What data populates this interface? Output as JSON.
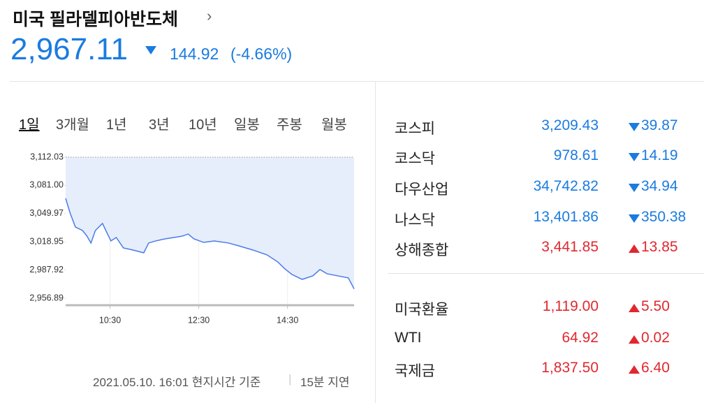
{
  "header": {
    "title": "미국 필라델피아반도체",
    "price": "2,967.11",
    "change": "144.92",
    "change_percent": "(-4.66%)"
  },
  "tabs": [
    "1일",
    "3개월",
    "1년",
    "3년",
    "10년",
    "일봉",
    "주봉",
    "월봉"
  ],
  "chart_data": {
    "type": "line",
    "color": "#4a7be8",
    "area_color": "#e6eefc",
    "x": [
      9.5,
      9.6,
      9.72,
      9.88,
      9.98,
      10.07,
      10.17,
      10.33,
      10.42,
      10.52,
      10.64,
      10.8,
      11.02,
      11.26,
      11.37,
      11.53,
      11.74,
      11.94,
      12.13,
      12.26,
      12.39,
      12.61,
      12.85,
      13.17,
      13.4,
      13.72,
      14.04,
      14.28,
      14.44,
      14.6,
      14.83,
      15.07,
      15.23,
      15.39,
      15.63,
      15.87,
      16.0
    ],
    "values": [
      3066.7,
      3050.6,
      3035.2,
      3031.4,
      3025.2,
      3017.6,
      3031.4,
      3039.1,
      3029.9,
      3019.9,
      3023.7,
      3012.2,
      3009.9,
      3006.8,
      3017.6,
      3019.9,
      3022.2,
      3023.7,
      3025.2,
      3027.5,
      3022.2,
      3018.3,
      3019.9,
      3017.6,
      3014.5,
      3009.9,
      3004.5,
      2996.8,
      2989.2,
      2983.0,
      2977.6,
      2981.5,
      2988.4,
      2983.8,
      2981.5,
      2979.2,
      2967.11
    ],
    "xlim": [
      9.5,
      16.0
    ],
    "ylim": [
      2949.2,
      3112.03
    ],
    "xticks": [
      {
        "value": 10.5,
        "label": "10:30"
      },
      {
        "value": 12.5,
        "label": "12:30"
      },
      {
        "value": 14.5,
        "label": "14:30"
      }
    ],
    "yticks": [
      {
        "value": 3112.03,
        "label": "3,112.03"
      },
      {
        "value": 3081.0,
        "label": "3,081.00"
      },
      {
        "value": 3049.97,
        "label": "3,049.97"
      },
      {
        "value": 3018.95,
        "label": "3,018.95"
      },
      {
        "value": 2987.92,
        "label": "2,987.92"
      },
      {
        "value": 2956.89,
        "label": "2,956.89"
      }
    ],
    "grid": true
  },
  "footer": {
    "timestamp": "2021.05.10. 16:01 현지시간 기준",
    "delay": "15분 지연"
  },
  "indices": [
    {
      "name": "코스피",
      "value": "3,209.43",
      "change": "39.87",
      "direction": "down"
    },
    {
      "name": "코스닥",
      "value": "978.61",
      "change": "14.19",
      "direction": "down"
    },
    {
      "name": "다우산업",
      "value": "34,742.82",
      "change": "34.94",
      "direction": "down"
    },
    {
      "name": "나스닥",
      "value": "13,401.86",
      "change": "350.38",
      "direction": "down"
    },
    {
      "name": "상해종합",
      "value": "3,441.85",
      "change": "13.85",
      "direction": "up"
    }
  ],
  "rates": [
    {
      "name": "미국환율",
      "value": "1,119.00",
      "change": "5.50",
      "direction": "up"
    },
    {
      "name": "WTI",
      "value": "64.92",
      "change": "0.02",
      "direction": "up"
    },
    {
      "name": "국제금",
      "value": "1,837.50",
      "change": "6.40",
      "direction": "up"
    }
  ]
}
